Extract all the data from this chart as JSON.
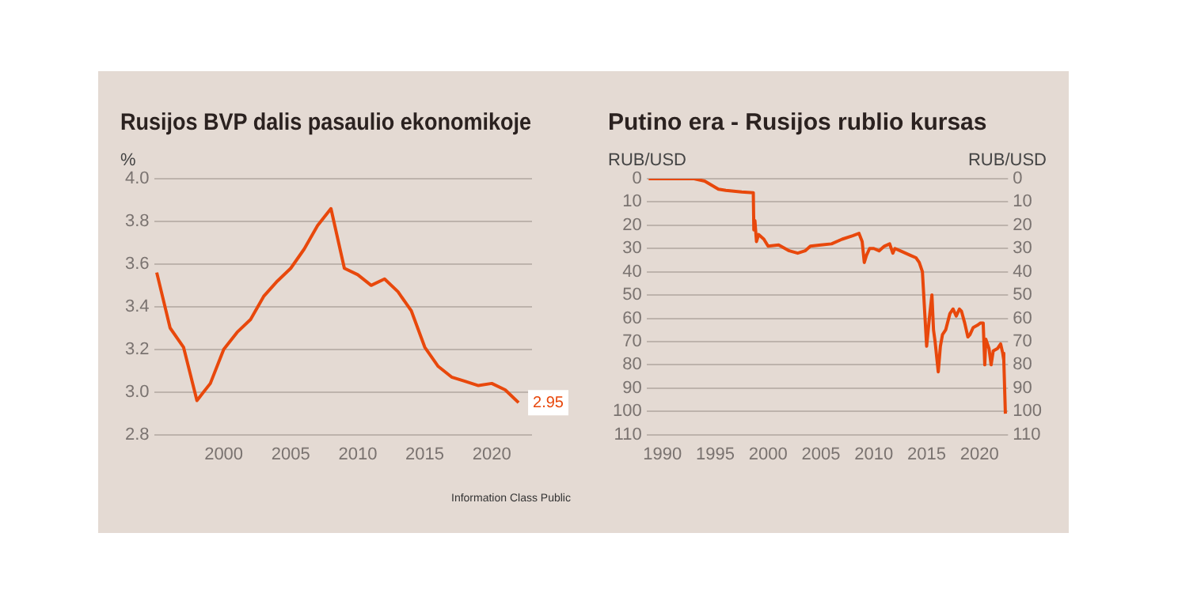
{
  "chart_data": [
    {
      "type": "line",
      "title": "Rusijos BVP dalis pasaulio ekonomikoje",
      "ylabel": "%",
      "marker": "none",
      "grid": "y",
      "x": [
        1995,
        1996,
        1997,
        1998,
        1999,
        2000,
        2001,
        2002,
        2003,
        2004,
        2005,
        2006,
        2007,
        2008,
        2009,
        2010,
        2011,
        2012,
        2013,
        2014,
        2015,
        2016,
        2017,
        2018,
        2019,
        2020,
        2021,
        2022
      ],
      "series": [
        {
          "color": "#e8480c",
          "values": [
            3.56,
            3.3,
            3.21,
            2.96,
            3.04,
            3.2,
            3.28,
            3.34,
            3.45,
            3.52,
            3.58,
            3.67,
            3.78,
            3.86,
            3.58,
            3.55,
            3.5,
            3.53,
            3.47,
            3.38,
            3.21,
            3.12,
            3.07,
            3.05,
            3.03,
            3.04,
            3.01,
            2.95
          ],
          "value_labels": [
            null,
            null,
            null,
            null,
            null,
            null,
            null,
            null,
            null,
            null,
            null,
            null,
            null,
            null,
            null,
            null,
            null,
            null,
            null,
            null,
            null,
            null,
            null,
            null,
            null,
            null,
            null,
            "2.95"
          ]
        }
      ],
      "xlim": [
        1994.8,
        2023
      ],
      "xticks": [
        2000,
        2005,
        2010,
        2015,
        2020
      ],
      "ylim": [
        2.8,
        4.0
      ],
      "yticks": [
        2.8,
        {
          "value": 3.0,
          "label": "3.0"
        },
        3.2,
        3.4,
        3.6,
        3.8,
        {
          "value": 4.0,
          "label": "4.0"
        }
      ],
      "annotations": [
        "Information Class Public"
      ]
    },
    {
      "type": "line",
      "title": "Putino era - Rusijos rublio kursas",
      "ylabel": "RUB/USD",
      "y2label": "RUB/USD",
      "marker": "none",
      "grid": "y",
      "x": [
        1988.7,
        1993,
        1994,
        1995.3,
        1996,
        1997.5,
        1998.6,
        1998.65,
        1998.75,
        1998.9,
        1999.1,
        1999.6,
        2000,
        2001,
        2002,
        2002.8,
        2003.5,
        2004,
        2005,
        2006,
        2007,
        2008,
        2008.6,
        2008.9,
        2009.1,
        2009.3,
        2009.6,
        2010,
        2010.5,
        2011,
        2011.5,
        2011.8,
        2012,
        2012.5,
        2013,
        2013.5,
        2014,
        2014.3,
        2014.6,
        2014.85,
        2015.0,
        2015.3,
        2015.5,
        2015.65,
        2015.8,
        2016.1,
        2016.3,
        2016.5,
        2016.8,
        2017.2,
        2017.5,
        2017.8,
        2018.1,
        2018.3,
        2018.6,
        2018.9,
        2019.1,
        2019.4,
        2019.8,
        2020.1,
        2020.35,
        2020.5,
        2020.6,
        2020.9,
        2021.1,
        2021.3,
        2021.7,
        2022.0,
        2022.2,
        2022.3,
        2022.45
      ],
      "series": [
        {
          "color": "#e8480c",
          "values": [
            0,
            0,
            1,
            4.5,
            5,
            5.7,
            6,
            22,
            18,
            27,
            24,
            26,
            29,
            28.5,
            31,
            32,
            31,
            29,
            28.5,
            28,
            26,
            24.5,
            23.5,
            27,
            36,
            33,
            30,
            30,
            31,
            29,
            28,
            32,
            30,
            31,
            32,
            33,
            34,
            36,
            40,
            60,
            72,
            58,
            50,
            65,
            70,
            83,
            72,
            67,
            65,
            58,
            56,
            59,
            56,
            57,
            62,
            68,
            67,
            64,
            63,
            62,
            62,
            80,
            69,
            73,
            80,
            74,
            73,
            71,
            75,
            78,
            101
          ]
        }
      ],
      "xlim": [
        1988.5,
        2022.7
      ],
      "xticks": [
        1990,
        1995,
        2000,
        2005,
        2010,
        2015,
        2020
      ],
      "ylim": [
        110,
        0
      ],
      "yticks": [
        0,
        10,
        20,
        30,
        40,
        50,
        60,
        70,
        80,
        90,
        100,
        110
      ],
      "y2lim": [
        110,
        0
      ],
      "y2ticks": [
        0,
        10,
        20,
        30,
        40,
        50,
        60,
        70,
        80,
        90,
        100,
        110
      ]
    }
  ]
}
